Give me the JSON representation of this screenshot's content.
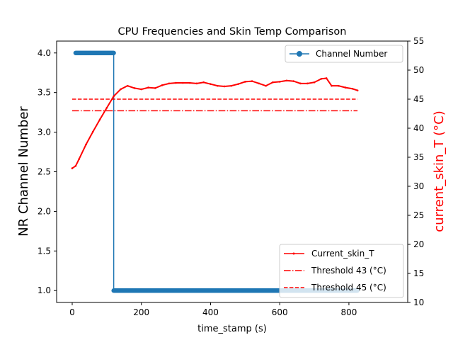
{
  "chart_data": {
    "type": "line",
    "title": "CPU Frequencies and Skin Temp Comparison",
    "xlabel": "time_stamp (s)",
    "ylabel_left": "NR Channel Number",
    "ylabel_right": "current_skin_T (°C)",
    "xlim": [
      -45,
      970
    ],
    "ylim_left": [
      0.85,
      4.15
    ],
    "ylim_right": [
      10,
      55
    ],
    "x_ticks": [
      0,
      200,
      400,
      600,
      800
    ],
    "y_left_ticks": [
      1.0,
      1.5,
      2.0,
      2.5,
      3.0,
      3.5,
      4.0
    ],
    "y_right_ticks": [
      10,
      15,
      20,
      25,
      30,
      35,
      40,
      45,
      50,
      55
    ],
    "channel_series": {
      "name": "Channel Number",
      "color": "#1f77b4",
      "segments": [
        {
          "x_start": 10,
          "x_end": 120,
          "value": 4.0
        },
        {
          "x_start": 120,
          "x_end": 825,
          "value": 1.0
        }
      ],
      "step_x": 120,
      "marker_spacing": 2
    },
    "skin_series": {
      "name": "Current_skin_T",
      "color": "#ff0000",
      "x": [
        0,
        10,
        20,
        40,
        60,
        80,
        100,
        120,
        140,
        160,
        180,
        200,
        220,
        240,
        260,
        280,
        300,
        320,
        340,
        360,
        380,
        400,
        420,
        440,
        460,
        480,
        500,
        520,
        540,
        560,
        580,
        600,
        620,
        640,
        660,
        680,
        700,
        720,
        735,
        750,
        770,
        790,
        810,
        825
      ],
      "y": [
        33.1,
        33.5,
        34.7,
        37.2,
        39.4,
        41.5,
        43.5,
        45.5,
        46.7,
        47.3,
        46.9,
        46.7,
        47.0,
        46.9,
        47.4,
        47.7,
        47.8,
        47.8,
        47.8,
        47.7,
        47.9,
        47.6,
        47.3,
        47.2,
        47.3,
        47.6,
        48.0,
        48.1,
        47.7,
        47.3,
        47.9,
        48.0,
        48.2,
        48.1,
        47.7,
        47.7,
        47.9,
        48.5,
        48.6,
        47.3,
        47.3,
        47.0,
        46.8,
        46.5
      ]
    },
    "thresholds": [
      {
        "name": "Threshold 43 (°C)",
        "value": 43,
        "style": "dashdot",
        "color": "#ff0000",
        "x_start": 0,
        "x_end": 825
      },
      {
        "name": "Threshold 45 (°C)",
        "value": 45,
        "style": "dashed",
        "color": "#ff0000",
        "x_start": 0,
        "x_end": 825
      }
    ],
    "legend_top": {
      "position": "upper-right",
      "entries": [
        "Channel Number"
      ]
    },
    "legend_bottom": {
      "position": "lower-right",
      "entries": [
        "Current_skin_T",
        "Threshold 43 (°C)",
        "Threshold 45 (°C)"
      ]
    }
  }
}
